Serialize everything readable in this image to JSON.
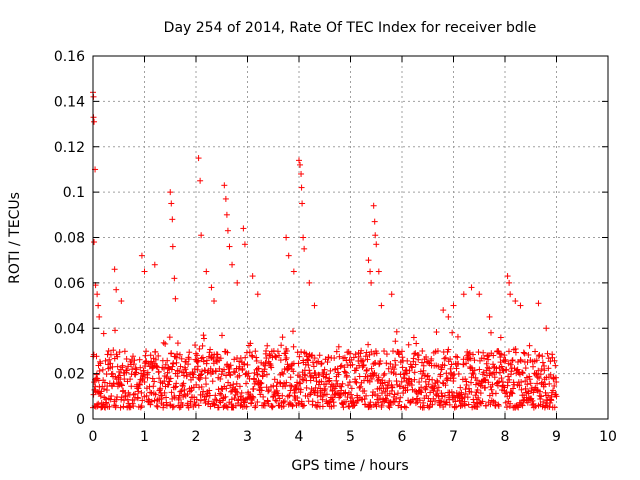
{
  "chart_data": {
    "type": "scatter",
    "title": "Day 254 of 2014, Rate Of TEC Index for receiver bdle",
    "xlabel": "GPS time / hours",
    "ylabel": "ROTI / TECUs",
    "xlim": [
      0,
      10
    ],
    "ylim": [
      0,
      0.16
    ],
    "x_ticks": [
      0,
      1,
      2,
      3,
      4,
      5,
      6,
      7,
      8,
      9,
      10
    ],
    "x_tick_labels": [
      "0",
      "1",
      "2",
      "3",
      "4",
      "5",
      "6",
      "7",
      "8",
      "9",
      "10"
    ],
    "y_ticks": [
      0,
      0.02,
      0.04,
      0.06,
      0.08,
      0.1,
      0.12,
      0.14,
      0.16
    ],
    "y_tick_labels": [
      "0",
      "0.02",
      "0.04",
      "0.06",
      "0.08",
      "0.1",
      "0.12",
      "0.14",
      "0.16"
    ],
    "grid": true,
    "marker": "plus",
    "color": "#ff0000",
    "series": [
      {
        "name": "ROTI",
        "x_range": [
          0,
          9
        ],
        "baseline_range": [
          0.005,
          0.03
        ],
        "points": [
          [
            0.0,
            0.144
          ],
          [
            0.01,
            0.142
          ],
          [
            0.01,
            0.133
          ],
          [
            0.02,
            0.131
          ],
          [
            0.04,
            0.11
          ],
          [
            0.02,
            0.078
          ],
          [
            0.05,
            0.059
          ],
          [
            0.08,
            0.055
          ],
          [
            0.1,
            0.05
          ],
          [
            0.12,
            0.045
          ],
          [
            0.42,
            0.066
          ],
          [
            0.45,
            0.057
          ],
          [
            0.55,
            0.052
          ],
          [
            0.95,
            0.072
          ],
          [
            1.0,
            0.065
          ],
          [
            1.2,
            0.068
          ],
          [
            1.5,
            0.1
          ],
          [
            1.52,
            0.095
          ],
          [
            1.54,
            0.088
          ],
          [
            1.55,
            0.076
          ],
          [
            1.58,
            0.062
          ],
          [
            1.6,
            0.053
          ],
          [
            2.05,
            0.115
          ],
          [
            2.08,
            0.105
          ],
          [
            2.1,
            0.081
          ],
          [
            2.2,
            0.065
          ],
          [
            2.3,
            0.058
          ],
          [
            2.35,
            0.052
          ],
          [
            2.55,
            0.103
          ],
          [
            2.58,
            0.097
          ],
          [
            2.6,
            0.09
          ],
          [
            2.62,
            0.083
          ],
          [
            2.65,
            0.076
          ],
          [
            2.7,
            0.068
          ],
          [
            2.8,
            0.06
          ],
          [
            2.92,
            0.084
          ],
          [
            2.95,
            0.077
          ],
          [
            3.1,
            0.063
          ],
          [
            3.2,
            0.055
          ],
          [
            3.75,
            0.08
          ],
          [
            3.8,
            0.072
          ],
          [
            3.9,
            0.065
          ],
          [
            4.0,
            0.114
          ],
          [
            4.02,
            0.112
          ],
          [
            4.04,
            0.108
          ],
          [
            4.05,
            0.102
          ],
          [
            4.06,
            0.095
          ],
          [
            4.08,
            0.08
          ],
          [
            4.1,
            0.075
          ],
          [
            4.2,
            0.06
          ],
          [
            4.3,
            0.05
          ],
          [
            5.35,
            0.07
          ],
          [
            5.38,
            0.065
          ],
          [
            5.4,
            0.06
          ],
          [
            5.45,
            0.094
          ],
          [
            5.47,
            0.087
          ],
          [
            5.48,
            0.081
          ],
          [
            5.5,
            0.077
          ],
          [
            5.55,
            0.065
          ],
          [
            5.6,
            0.05
          ],
          [
            5.8,
            0.055
          ],
          [
            6.8,
            0.048
          ],
          [
            6.9,
            0.045
          ],
          [
            7.0,
            0.05
          ],
          [
            7.2,
            0.055
          ],
          [
            7.35,
            0.058
          ],
          [
            7.5,
            0.055
          ],
          [
            7.7,
            0.045
          ],
          [
            8.05,
            0.063
          ],
          [
            8.08,
            0.06
          ],
          [
            8.1,
            0.055
          ],
          [
            8.2,
            0.052
          ],
          [
            8.3,
            0.05
          ],
          [
            8.65,
            0.051
          ],
          [
            8.8,
            0.04
          ]
        ]
      }
    ]
  }
}
